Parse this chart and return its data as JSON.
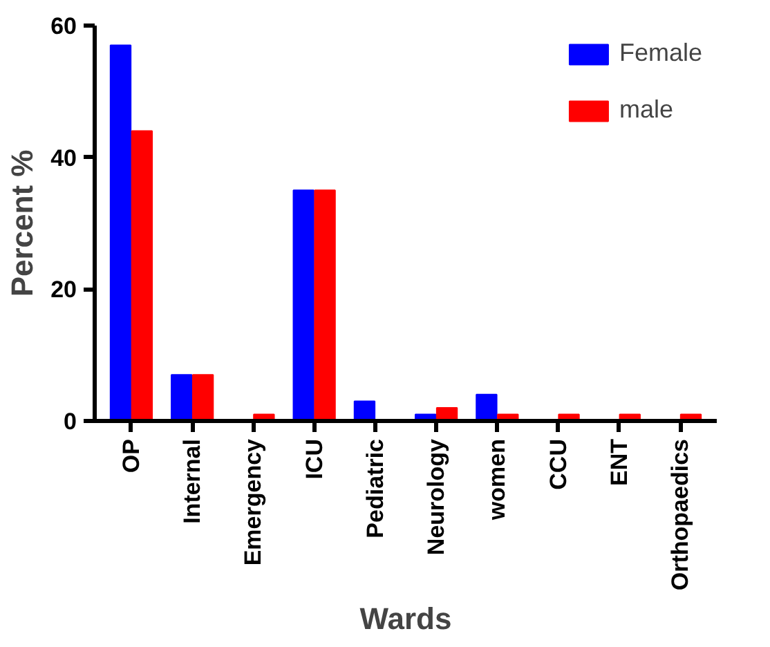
{
  "chart_data": {
    "type": "bar",
    "xlabel": "Wards",
    "ylabel": "Percent %",
    "categories": [
      "OP",
      "Internal",
      "Emergency",
      "ICU",
      "Pediatric",
      "Neurology",
      "women",
      "CCU",
      "ENT",
      "Orthopaedics"
    ],
    "series": [
      {
        "name": "Female",
        "color": "#0000ff",
        "values": [
          57,
          7,
          0,
          35,
          3,
          1,
          4,
          0,
          0,
          0
        ]
      },
      {
        "name": "male",
        "color": "#ff0000",
        "values": [
          44,
          7,
          1,
          35,
          0,
          2,
          1,
          1,
          1,
          1
        ]
      }
    ],
    "ylim": [
      0,
      60
    ],
    "yticks": [
      0,
      20,
      40,
      60
    ],
    "grid": false,
    "legend": "top right"
  }
}
